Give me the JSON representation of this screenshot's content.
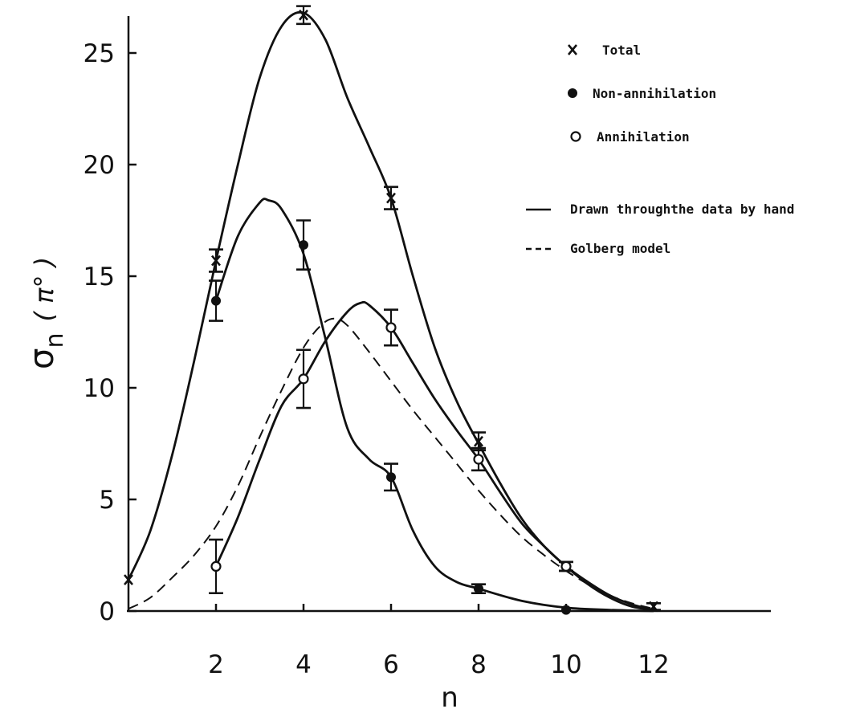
{
  "chart_data": {
    "type": "scatter",
    "title": "",
    "xlabel": "n",
    "ylabel_symbol": "σ",
    "ylabel_subscript": "n",
    "ylabel_unit": "( π° )",
    "xlim": [
      0,
      14.5
    ],
    "ylim": [
      0,
      27
    ],
    "x_ticks": [
      2,
      4,
      6,
      8,
      10,
      12
    ],
    "x_tick_labels": [
      "2",
      "4",
      "6",
      "8",
      "10",
      "12"
    ],
    "y_ticks": [
      0,
      5,
      10,
      15,
      20,
      25
    ],
    "y_tick_labels": [
      "0",
      "5",
      "10",
      "15",
      "20",
      "25"
    ],
    "grid": false,
    "legend_position": "top-right",
    "series": [
      {
        "name": "Total",
        "marker": "x",
        "x": [
          0,
          2,
          4,
          6,
          8,
          10,
          12
        ],
        "y": [
          1.4,
          15.7,
          26.7,
          18.5,
          7.6,
          2.0,
          0.2
        ],
        "err": [
          0,
          0.5,
          0.4,
          0.5,
          0.4,
          0.2,
          0.15
        ]
      },
      {
        "name": "Non-annihilation",
        "marker": "filled-circle",
        "x": [
          2,
          4,
          6,
          8,
          10
        ],
        "y": [
          13.9,
          16.4,
          6.0,
          1.0,
          0.05
        ],
        "err": [
          0.9,
          1.1,
          0.6,
          0.2,
          0
        ]
      },
      {
        "name": "Annihilation",
        "marker": "open-circle",
        "x": [
          2,
          4,
          6,
          8,
          10
        ],
        "y": [
          2.0,
          10.4,
          12.7,
          6.8,
          2.0
        ],
        "err": [
          1.2,
          1.3,
          0.8,
          0.5,
          0.2
        ]
      }
    ],
    "curves": [
      {
        "name": "Drawn throughthe data by hand",
        "style": "solid",
        "fits": "Total",
        "x": [
          0,
          0.5,
          1,
          1.5,
          2,
          2.5,
          3,
          3.5,
          4,
          4.5,
          5,
          5.5,
          6,
          6.5,
          7,
          7.5,
          8,
          8.5,
          9,
          9.5,
          10,
          10.5,
          11,
          11.5,
          12
        ],
        "y": [
          1.4,
          3.6,
          7.0,
          11.2,
          15.7,
          20.0,
          23.9,
          26.2,
          26.8,
          25.6,
          23.0,
          20.8,
          18.5,
          15.0,
          11.8,
          9.4,
          7.5,
          5.7,
          4.1,
          2.9,
          2.0,
          1.2,
          0.6,
          0.2,
          0.05
        ]
      },
      {
        "name": "Drawn throughthe data by hand",
        "style": "solid",
        "fits": "Non-annihilation",
        "x": [
          2,
          2.5,
          3,
          3.2,
          3.5,
          4,
          4.5,
          5,
          5.5,
          6,
          6.5,
          7,
          7.5,
          8,
          9,
          10,
          11,
          12
        ],
        "y": [
          13.9,
          16.8,
          18.3,
          18.4,
          18.0,
          16.0,
          12.2,
          8.2,
          6.8,
          6.0,
          3.6,
          2.0,
          1.3,
          1.0,
          0.45,
          0.15,
          0.05,
          0.0
        ]
      },
      {
        "name": "Drawn throughthe data by hand",
        "style": "solid",
        "fits": "Annihilation",
        "x": [
          2,
          2.5,
          3,
          3.5,
          4,
          4.5,
          5,
          5.3,
          5.5,
          6,
          6.5,
          7,
          7.5,
          8,
          8.5,
          9,
          9.5,
          10,
          10.5,
          11,
          11.5,
          12
        ],
        "y": [
          2.0,
          4.2,
          6.8,
          9.2,
          10.4,
          12.1,
          13.4,
          13.8,
          13.7,
          12.7,
          11.1,
          9.5,
          8.1,
          6.8,
          5.3,
          3.9,
          2.9,
          2.0,
          1.3,
          0.7,
          0.3,
          0.05
        ]
      },
      {
        "name": "Golberg model",
        "style": "dashed",
        "x": [
          0,
          0.5,
          1,
          1.5,
          2,
          2.5,
          3,
          3.5,
          4,
          4.4,
          4.7,
          5,
          5.5,
          6,
          6.5,
          7,
          7.5,
          8,
          8.5,
          9,
          9.5,
          10,
          10.5,
          11,
          11.5,
          12
        ],
        "y": [
          0.1,
          0.6,
          1.5,
          2.5,
          3.8,
          5.6,
          7.8,
          9.9,
          11.8,
          12.8,
          13.1,
          12.8,
          11.6,
          10.3,
          9.0,
          7.8,
          6.6,
          5.4,
          4.3,
          3.3,
          2.5,
          1.8,
          1.2,
          0.7,
          0.35,
          0.1
        ]
      }
    ]
  },
  "legend": {
    "items": [
      {
        "label": "Total",
        "symbol": "x"
      },
      {
        "label": "Non-annihilation",
        "symbol": "filled-circle"
      },
      {
        "label": "Annihilation",
        "symbol": "open-circle"
      },
      {
        "label": "Drawn throughthe data by hand",
        "symbol": "solid-line"
      },
      {
        "label": "Golberg model",
        "symbol": "dashed-line"
      }
    ]
  }
}
